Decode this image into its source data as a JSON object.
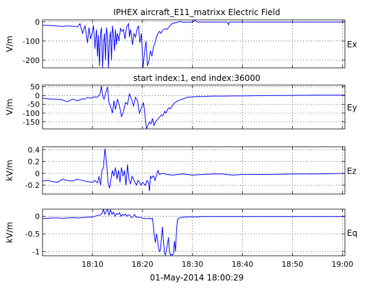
{
  "figure": {
    "title": "IPHEX aircraft_E11_matrixx Electric Field",
    "subtitle": "start index:1, end index:36000",
    "xlabel": "01-May-2014 18:00:29"
  },
  "chart_data": [
    {
      "type": "line",
      "ylabel": "V/m",
      "side_label": "Ex",
      "xlim": [
        0,
        60.5
      ],
      "ylim": [
        -240,
        10
      ],
      "yticks": [
        0,
        -100,
        -200
      ],
      "ytick_labels": [
        "0",
        "-100",
        "-200"
      ],
      "xticks": [
        10,
        20,
        30,
        40,
        50,
        60
      ],
      "xtick_labels": [],
      "grid": true,
      "color": "#0000ff",
      "x": [
        0,
        1,
        2,
        3,
        4,
        5,
        6,
        7,
        7.5,
        8,
        8.5,
        9,
        9.3,
        9.6,
        9.9,
        10.2,
        10.5,
        10.8,
        11,
        11.2,
        11.4,
        11.6,
        11.8,
        12,
        12.2,
        12.4,
        12.6,
        12.8,
        13,
        13.2,
        13.4,
        13.6,
        13.8,
        14,
        14.2,
        14.4,
        14.6,
        14.8,
        15,
        15.3,
        15.6,
        15.9,
        16.2,
        16.5,
        16.8,
        17,
        17.2,
        17.4,
        17.6,
        17.8,
        18,
        18.3,
        18.6,
        18.9,
        19.2,
        19.5,
        19.8,
        20.1,
        20.4,
        20.7,
        21,
        21.3,
        21.6,
        21.9,
        22.2,
        22.5,
        22.8,
        23.1,
        23.4,
        23.7,
        24,
        24.3,
        24.6,
        24.9,
        25.2,
        25.5,
        25.8,
        26.1,
        26.4,
        26.7,
        27,
        27.5,
        28,
        28.5,
        29,
        29.5,
        30,
        30.5,
        31,
        32,
        33,
        34,
        35,
        36,
        37,
        37.2,
        37.4,
        37.6,
        38,
        40,
        42,
        45,
        50,
        55,
        60.5
      ],
      "y": [
        -18,
        -19,
        -20,
        -22,
        -24,
        -21,
        -23,
        -26,
        -10,
        -60,
        -20,
        -110,
        -30,
        -90,
        -60,
        -20,
        -140,
        -40,
        -180,
        -70,
        -230,
        -60,
        -30,
        -240,
        -120,
        -60,
        -200,
        -30,
        -80,
        -240,
        -90,
        -50,
        -200,
        -20,
        -70,
        -150,
        -40,
        -120,
        -60,
        -100,
        -35,
        -50,
        -40,
        -90,
        -30,
        -20,
        -10,
        -80,
        -40,
        -70,
        -120,
        -60,
        -80,
        -40,
        -20,
        -110,
        -60,
        -240,
        -160,
        -100,
        -230,
        -200,
        -150,
        -180,
        -130,
        -110,
        -80,
        -60,
        -50,
        -60,
        -45,
        -40,
        -35,
        -40,
        -30,
        -20,
        -12,
        -8,
        -6,
        -4,
        -3,
        3,
        -2,
        -1,
        -2,
        -1,
        -1,
        8,
        -1,
        -1,
        -1,
        -1,
        -1,
        -1,
        -1,
        -15,
        -2,
        -1,
        -1,
        -1,
        -1,
        -1,
        -1,
        -1,
        -1
      ]
    },
    {
      "type": "line",
      "ylabel": "V/m",
      "side_label": "Ey",
      "xlim": [
        0,
        60.5
      ],
      "ylim": [
        -190,
        60
      ],
      "yticks": [
        50,
        0,
        -50,
        -100,
        -150
      ],
      "ytick_labels": [
        "50",
        "0",
        "-50",
        "-100",
        "-150"
      ],
      "xticks": [
        10,
        20,
        30,
        40,
        50,
        60
      ],
      "xtick_labels": [],
      "grid": true,
      "color": "#0000ff",
      "x": [
        0,
        1,
        2,
        3,
        4,
        5,
        6,
        7,
        8,
        8.5,
        9,
        9.5,
        10,
        10.5,
        11,
        11.5,
        11.8,
        12,
        12.3,
        12.6,
        13,
        13.3,
        13.6,
        14,
        14.3,
        14.6,
        15,
        15.4,
        15.8,
        16.2,
        16.6,
        17,
        17.4,
        17.8,
        18.2,
        18.6,
        19,
        19.4,
        19.8,
        20.2,
        20.5,
        20.8,
        21.1,
        21.4,
        21.7,
        22,
        22.3,
        22.6,
        22.9,
        23.2,
        23.5,
        23.8,
        24.1,
        24.4,
        24.7,
        25,
        25.3,
        25.6,
        25.9,
        26.2,
        26.5,
        26.8,
        27.1,
        27.5,
        28,
        29,
        30,
        31,
        32,
        33,
        34,
        36,
        38,
        40,
        42,
        45,
        50,
        55,
        60.5
      ],
      "y": [
        -15,
        -18,
        -20,
        -22,
        -25,
        -35,
        -20,
        -30,
        -18,
        -20,
        -10,
        -15,
        -12,
        -8,
        -10,
        10,
        55,
        0,
        -20,
        10,
        50,
        -40,
        -60,
        -100,
        -30,
        -80,
        -20,
        -60,
        -120,
        -90,
        -40,
        -50,
        10,
        -20,
        -60,
        -10,
        -30,
        -100,
        -70,
        -40,
        -110,
        -190,
        -170,
        -150,
        -160,
        -130,
        -170,
        -150,
        -140,
        -130,
        -120,
        -110,
        -115,
        -90,
        -100,
        -80,
        -70,
        -75,
        -60,
        -50,
        -40,
        -35,
        -30,
        -25,
        -20,
        -10,
        -8,
        -5,
        -6,
        -4,
        -3,
        -3,
        -2,
        -2,
        -1,
        0,
        1,
        2,
        2
      ]
    },
    {
      "type": "line",
      "ylabel": "kV/m",
      "side_label": "Ez",
      "xlim": [
        0,
        60.5
      ],
      "ylim": [
        -0.35,
        0.45
      ],
      "yticks": [
        0.4,
        0.2,
        0,
        -0.2
      ],
      "ytick_labels": [
        "0.4",
        "0.2",
        "0",
        "-0.2"
      ],
      "xticks": [
        10,
        20,
        30,
        40,
        50,
        60
      ],
      "xtick_labels": [],
      "grid": true,
      "color": "#0000ff",
      "x": [
        0,
        1,
        2,
        3,
        4,
        5,
        6,
        7,
        8,
        9,
        10,
        10.5,
        11,
        11.3,
        11.6,
        11.9,
        12.2,
        12.5,
        12.8,
        13.1,
        13.4,
        13.7,
        14,
        14.3,
        14.6,
        14.9,
        15.2,
        15.5,
        15.8,
        16.1,
        16.4,
        16.7,
        17,
        17.3,
        17.6,
        17.9,
        18.2,
        18.5,
        18.8,
        19.1,
        19.4,
        19.7,
        20,
        20.3,
        20.6,
        20.9,
        21.2,
        21.4,
        21.6,
        21.8,
        22,
        22.2,
        22.5,
        22.8,
        23.1,
        23.4,
        23.7,
        24,
        25,
        26,
        27,
        28,
        29,
        30,
        32,
        34,
        36,
        38,
        40,
        45,
        50,
        55,
        60.5
      ],
      "y": [
        -0.13,
        -0.12,
        -0.14,
        -0.15,
        -0.1,
        -0.12,
        -0.13,
        -0.1,
        -0.12,
        -0.14,
        -0.15,
        -0.12,
        -0.16,
        -0.05,
        -0.2,
        0.05,
        0.1,
        0.42,
        0.2,
        -0.15,
        -0.25,
        -0.1,
        0.05,
        -0.05,
        0.1,
        -0.1,
        0.05,
        -0.15,
        0.1,
        -0.05,
        0.05,
        -0.2,
        0.15,
        -0.1,
        -0.18,
        -0.05,
        -0.1,
        -0.15,
        -0.2,
        -0.12,
        -0.15,
        -0.2,
        -0.15,
        -0.18,
        -0.2,
        -0.12,
        -0.15,
        -0.3,
        -0.05,
        -0.08,
        -0.06,
        -0.04,
        -0.12,
        -0.03,
        0.05,
        -0.02,
        -0.01,
        0,
        -0.02,
        -0.03,
        -0.02,
        -0.01,
        -0.02,
        -0.03,
        -0.02,
        -0.01,
        -0.01,
        -0.03,
        -0.02,
        -0.02,
        -0.01,
        -0.01,
        0
      ]
    },
    {
      "type": "line",
      "ylabel": "kV/m",
      "side_label": "Eq",
      "xlim": [
        0,
        60.5
      ],
      "ylim": [
        -1.12,
        0.2
      ],
      "yticks": [
        0,
        -0.5,
        -1
      ],
      "ytick_labels": [
        "0",
        "-0.5",
        "-1"
      ],
      "xticks": [
        10,
        20,
        30,
        40,
        50,
        60
      ],
      "xtick_labels": [
        "18:10",
        "18:20",
        "18:30",
        "18:40",
        "18:50",
        "19:00"
      ],
      "grid": true,
      "color": "#0000ff",
      "x": [
        0,
        1,
        2,
        3,
        4,
        5,
        6,
        7,
        8,
        9,
        10,
        10.5,
        11,
        11.5,
        12,
        12.2,
        12.5,
        12.8,
        13,
        13.3,
        13.6,
        13.9,
        14.2,
        14.5,
        14.8,
        15.1,
        15.4,
        15.7,
        16,
        16.3,
        16.6,
        16.9,
        17.2,
        17.5,
        17.8,
        18.1,
        18.4,
        18.7,
        19,
        19.3,
        19.6,
        19.9,
        20.2,
        20.5,
        20.8,
        21.1,
        21.4,
        21.7,
        22,
        22.2,
        22.4,
        22.6,
        22.8,
        23,
        23.2,
        23.4,
        23.6,
        23.8,
        24,
        24.2,
        24.4,
        24.6,
        24.8,
        25,
        25.2,
        25.4,
        25.6,
        25.8,
        26,
        26.2,
        26.4,
        26.6,
        26.8,
        27,
        27.3,
        27.6,
        28,
        29,
        30,
        31,
        32,
        34,
        36,
        38,
        40,
        45,
        50,
        55,
        60.5
      ],
      "y": [
        -0.06,
        -0.06,
        -0.05,
        -0.05,
        -0.06,
        -0.05,
        -0.04,
        -0.05,
        -0.04,
        -0.03,
        -0.02,
        0,
        0.02,
        0.03,
        0.1,
        0.2,
        0.05,
        0.15,
        0.2,
        0.02,
        0.18,
        0.05,
        0.12,
        0,
        0.08,
        0.05,
        0.1,
        0,
        0.05,
        0.02,
        0.06,
        0,
        0.04,
        0.02,
        -0.04,
        -0.02,
        0.05,
        -0.03,
        -0.02,
        -0.04,
        -0.03,
        -0.05,
        -0.06,
        -0.06,
        -0.07,
        -0.07,
        -0.05,
        -0.08,
        -0.06,
        -0.3,
        -0.6,
        -0.75,
        -0.5,
        -0.65,
        -0.9,
        -1.0,
        -0.95,
        -0.6,
        -0.3,
        -0.7,
        -1.05,
        -1.1,
        -0.95,
        -0.8,
        -0.6,
        -1.0,
        -1.1,
        -1.08,
        -1.1,
        -1.05,
        -0.7,
        -1.0,
        -0.4,
        -0.1,
        -0.05,
        -0.04,
        -0.03,
        -0.02,
        -0.02,
        -0.02,
        -0.01,
        -0.01,
        -0.01,
        -0.01,
        -0.01,
        -0.01,
        -0.01,
        -0.01,
        -0.01
      ]
    }
  ]
}
